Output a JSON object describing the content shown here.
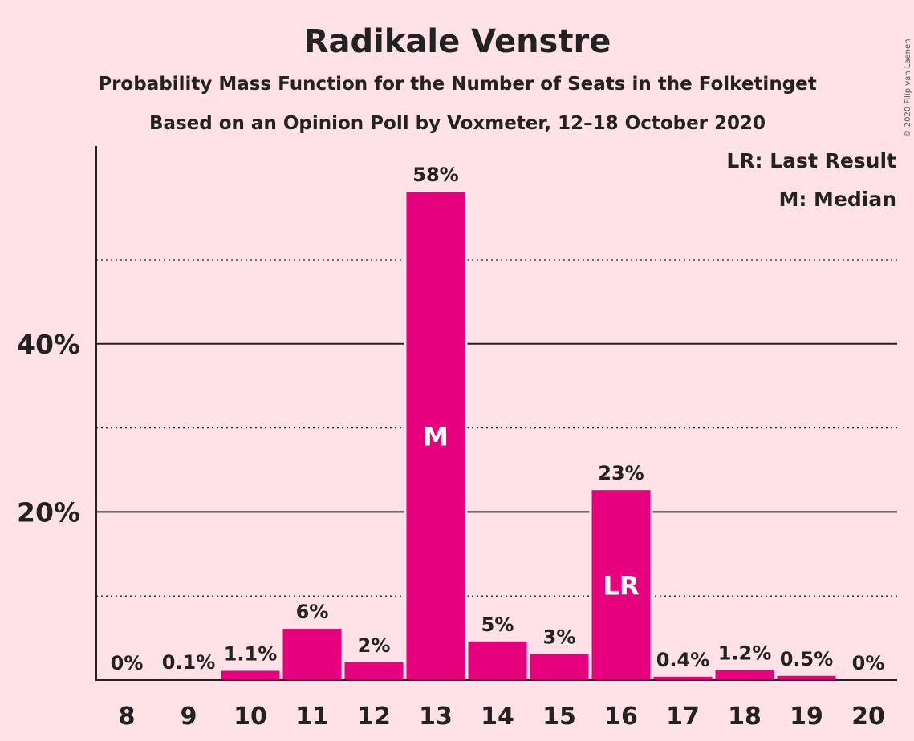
{
  "chart_data": {
    "type": "bar",
    "title": "Radikale Venstre",
    "subtitle": "Probability Mass Function for the Number of Seats in the Folketinget",
    "subtitle2": "Based on an Opinion Poll by Voxmeter, 12–18 October 2020",
    "copyright": "© 2020 Filip van Laenen",
    "legend": [
      "LR: Last Result",
      "M: Median"
    ],
    "legend_placement": "top-right",
    "xlabel": "",
    "ylabel": "",
    "ylim": [
      0,
      63
    ],
    "yticks": [
      {
        "value": 20,
        "label": "20%"
      },
      {
        "value": 40,
        "label": "40%"
      }
    ],
    "minor_gridlines": [
      10,
      30,
      50
    ],
    "grid": true,
    "bar_color": "#E6007E",
    "categories": [
      "8",
      "9",
      "10",
      "11",
      "12",
      "13",
      "14",
      "15",
      "16",
      "17",
      "18",
      "19",
      "20"
    ],
    "values": [
      0,
      0.1,
      1.1,
      6.1,
      2.1,
      58.1,
      4.6,
      3.1,
      22.6,
      0.4,
      1.2,
      0.5,
      0
    ],
    "data_labels": [
      "0%",
      "0.1%",
      "1.1%",
      "6%",
      "2%",
      "58%",
      "5%",
      "3%",
      "23%",
      "0.4%",
      "1.2%",
      "0.5%",
      "0%"
    ],
    "bar_annotations": [
      {
        "category": "13",
        "text": "M"
      },
      {
        "category": "16",
        "text": "LR"
      }
    ]
  }
}
